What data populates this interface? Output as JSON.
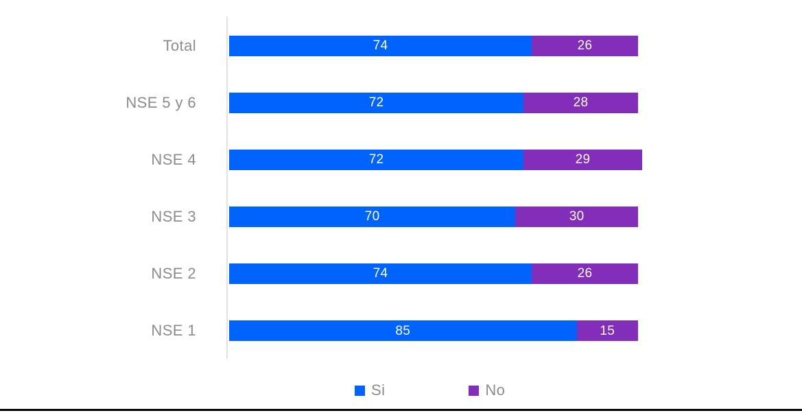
{
  "chart_data": {
    "type": "bar",
    "orientation": "horizontal",
    "stacked": true,
    "title": "",
    "xlabel": "",
    "ylabel": "",
    "categories": [
      "Total",
      "NSE 5 y 6",
      "NSE 4",
      "NSE 3",
      "NSE 2",
      "NSE 1"
    ],
    "series": [
      {
        "name": "Si",
        "color": "#0063fb",
        "values": [
          74,
          72,
          72,
          70,
          74,
          85
        ]
      },
      {
        "name": "No",
        "color": "#832dbb",
        "values": [
          26,
          28,
          29,
          30,
          26,
          15
        ]
      }
    ],
    "xlim": [
      0,
      101
    ],
    "grid": false,
    "value_labels": "inside-center",
    "value_label_color": "#ffffff",
    "legend_position": "bottom",
    "category_label_color": "#8c8c8c",
    "axis_line_color": "#e3e3e3"
  }
}
